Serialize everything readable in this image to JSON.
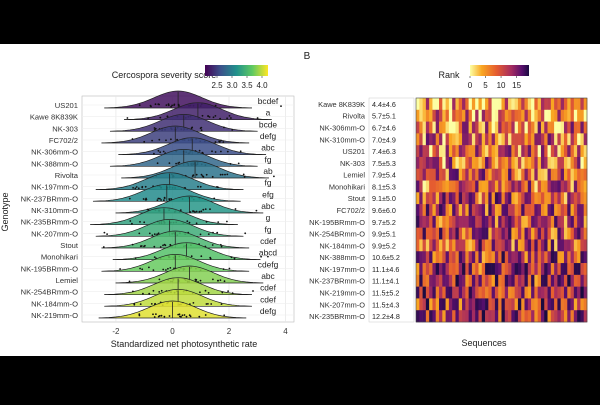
{
  "figure": {
    "panel_label": "B"
  },
  "chart_data": [
    {
      "type": "ridgeline",
      "legend": {
        "title": "Cercospora severity score",
        "ticks": [
          "2.5",
          "3.0",
          "3.5",
          "4.0"
        ],
        "colors": [
          "#440154",
          "#3b528b",
          "#21918c",
          "#5ec962",
          "#fde725"
        ],
        "range": [
          2.1,
          4.2
        ]
      },
      "ylabel": "Genotype",
      "xlabel": "Standardized net photosynthetic rate",
      "xlim": [
        -3.2,
        4.3
      ],
      "xticks": [
        -2,
        0,
        2,
        4
      ],
      "grid": true,
      "rows": [
        {
          "genotype": "US201",
          "group": "bcdef",
          "mean": 0.2,
          "severity": 2.2
        },
        {
          "genotype": "Kawe 8K839K",
          "group": "a",
          "mean": 0.9,
          "severity": 2.3
        },
        {
          "genotype": "NK-303",
          "group": "bcde",
          "mean": 0.4,
          "severity": 2.4
        },
        {
          "genotype": "FC702/2",
          "group": "defg",
          "mean": 0.1,
          "severity": 2.5
        },
        {
          "genotype": "NK-306mm-O",
          "group": "abc",
          "mean": 0.7,
          "severity": 2.6
        },
        {
          "genotype": "NK-388mm-O",
          "group": "fg",
          "mean": 0.4,
          "severity": 2.8
        },
        {
          "genotype": "Rivolta",
          "group": "ab",
          "mean": 0.8,
          "severity": 2.9
        },
        {
          "genotype": "NK-197mm-O",
          "group": "fg",
          "mean": -0.1,
          "severity": 3.0
        },
        {
          "genotype": "NK-237BRmm-O",
          "group": "efg",
          "mean": -0.2,
          "severity": 3.1
        },
        {
          "genotype": "NK-310mm-O",
          "group": "abc",
          "mean": 0.6,
          "severity": 3.2
        },
        {
          "genotype": "NK-235BRmm-O",
          "group": "g",
          "mean": -0.3,
          "severity": 3.3
        },
        {
          "genotype": "NK-207mm-O",
          "group": "fg",
          "mean": -0.1,
          "severity": 3.4
        },
        {
          "genotype": "Stout",
          "group": "cdef",
          "mean": 0.1,
          "severity": 3.5
        },
        {
          "genotype": "Monohikari",
          "group": "abcd",
          "mean": 0.5,
          "severity": 3.6
        },
        {
          "genotype": "NK-195BRmm-O",
          "group": "cdefg",
          "mean": 0.1,
          "severity": 3.7
        },
        {
          "genotype": "Lemiel",
          "group": "abc",
          "mean": 0.6,
          "severity": 3.8
        },
        {
          "genotype": "NK-254BRmm-O",
          "group": "cdef",
          "mean": 0.2,
          "severity": 3.9
        },
        {
          "genotype": "NK-184mm-O",
          "group": "cdef",
          "mean": 0.2,
          "severity": 4.0
        },
        {
          "genotype": "NK-219mm-O",
          "group": "defg",
          "mean": 0.0,
          "severity": 4.1
        }
      ]
    },
    {
      "type": "heatmap",
      "legend": {
        "title": "Rank",
        "ticks": [
          "0",
          "5",
          "10",
          "15"
        ],
        "range": [
          0,
          19
        ]
      },
      "xlabel": "Sequences",
      "rows": [
        {
          "label": "Kawe 8K839K",
          "value": "4.4±4.6"
        },
        {
          "label": "Rivolta",
          "value": "5.7±5.1"
        },
        {
          "label": "NK-306mm-O",
          "value": "6.7±4.6"
        },
        {
          "label": "NK-310mm-O",
          "value": "7.0±4.9"
        },
        {
          "label": "US201",
          "value": "7.4±6.3"
        },
        {
          "label": "NK-303",
          "value": "7.5±5.3"
        },
        {
          "label": "Lemiel",
          "value": "7.9±5.4"
        },
        {
          "label": "Monohikari",
          "value": "8.1±5.3"
        },
        {
          "label": "Stout",
          "value": "9.1±5.0"
        },
        {
          "label": "FC702/2",
          "value": "9.6±6.0"
        },
        {
          "label": "NK-195BRmm-O",
          "value": "9.7±5.2"
        },
        {
          "label": "NK-254BRmm-O",
          "value": "9.9±5.1"
        },
        {
          "label": "NK-184mm-O",
          "value": "9.9±5.2"
        },
        {
          "label": "NK-388mm-O",
          "value": "10.6±5.2"
        },
        {
          "label": "NK-197mm-O",
          "value": "11.1±4.6"
        },
        {
          "label": "NK-237BRmm-O",
          "value": "11.1±4.1"
        },
        {
          "label": "NK-219mm-O",
          "value": "11.5±5.2"
        },
        {
          "label": "NK-207mm-O",
          "value": "11.5±4.3"
        },
        {
          "label": "NK-235BRmm-O",
          "value": "12.2±4.8"
        }
      ]
    }
  ]
}
